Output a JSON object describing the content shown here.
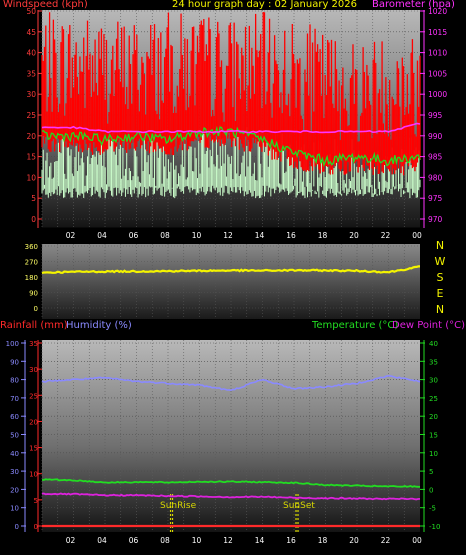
{
  "header": {
    "windspeed": "Windspeed (kph)",
    "title": "24 hour graph day : 02 January 2026",
    "barometer": "Barometer (hpa)"
  },
  "colors": {
    "windspeed": "#ff3b3b",
    "title": "#f4f400",
    "barometer": "#ff33ff",
    "gust": "#ff0000",
    "wind_avg": "#22dd22",
    "wind_light": "#ccffcc",
    "direction": "#f4f400",
    "rainfall": "#ff2a2a",
    "humidity": "#8a8aff",
    "temperature": "#22dd22",
    "dewpoint": "#dd22dd",
    "sun_markers": "#d8d800"
  },
  "time_labels": [
    "02",
    "04",
    "06",
    "08",
    "10",
    "12",
    "14",
    "16",
    "18",
    "20",
    "22",
    "00"
  ],
  "wind_panel": {
    "left_ticks": [
      "0",
      "5",
      "10",
      "15",
      "20",
      "25",
      "30",
      "35",
      "40",
      "45",
      "50"
    ],
    "right_ticks": [
      "970",
      "975",
      "980",
      "985",
      "990",
      "995",
      "1000",
      "1005",
      "1010",
      "1015",
      "1020"
    ]
  },
  "direction_panel": {
    "left_ticks": [
      "0",
      "90",
      "180",
      "270",
      "360"
    ],
    "compass": [
      "N",
      "W",
      "S",
      "E",
      "N"
    ]
  },
  "bottom_panel": {
    "rainfall_label": "Rainfall (mm)",
    "humidity_label": "Humidity (%)",
    "temperature_label": "Temperature (°C)",
    "dewpoint_label": "Dew Point (°C)",
    "rain_ticks": [
      "0",
      "5",
      "10",
      "15",
      "20",
      "25",
      "30",
      "35"
    ],
    "humidity_ticks": [
      "0",
      "10",
      "20",
      "30",
      "40",
      "50",
      "60",
      "70",
      "80",
      "90",
      "100"
    ],
    "temp_ticks": [
      "-10",
      "-5",
      "0",
      "5",
      "10",
      "15",
      "20",
      "25",
      "30",
      "35",
      "40"
    ],
    "sunrise_label": "SunRise",
    "sunset_label": "SunSet"
  },
  "chart_data": [
    {
      "type": "line",
      "panel": "wind and barometer",
      "x": [
        "00",
        "02",
        "04",
        "06",
        "08",
        "10",
        "12",
        "14",
        "16",
        "18",
        "20",
        "22",
        "00"
      ],
      "ylim": [
        0,
        50
      ],
      "y2lim": [
        970,
        1020
      ],
      "series": [
        {
          "values": [
            33,
            33,
            32,
            32,
            33,
            33,
            32,
            33,
            31,
            29,
            27,
            28,
            28
          ]
        },
        {
          "values": [
            20,
            20,
            19,
            20,
            19,
            21,
            21,
            19,
            16,
            14,
            15,
            14,
            15
          ]
        },
        {
          "values": [
            11,
            11,
            10,
            11,
            10,
            12,
            12,
            11,
            9,
            8,
            8,
            8,
            9
          ]
        },
        {
          "axis": "right",
          "values": [
            992,
            992,
            991,
            991,
            991,
            991,
            991,
            991,
            991,
            991,
            991,
            991,
            993
          ]
        }
      ]
    },
    {
      "type": "line",
      "panel": "wind direction",
      "x": [
        "00",
        "02",
        "04",
        "06",
        "08",
        "10",
        "12",
        "14",
        "16",
        "18",
        "20",
        "22",
        "00"
      ],
      "ylim": [
        0,
        360
      ],
      "series": [
        {
          "values": [
            205,
            210,
            212,
            213,
            214,
            216,
            218,
            217,
            219,
            218,
            216,
            208,
            240
          ]
        }
      ]
    },
    {
      "type": "line",
      "panel": "rain humidity temperature dew point",
      "x": [
        "00",
        "02",
        "04",
        "06",
        "08",
        "10",
        "12",
        "14",
        "16",
        "18",
        "20",
        "22",
        "00"
      ],
      "ylim": [
        0,
        100
      ],
      "y2lim": [
        -10,
        40
      ],
      "series": [
        {
          "axis": "left",
          "values": [
            0,
            0,
            0,
            0,
            0,
            0,
            0,
            0,
            0,
            0,
            0,
            0,
            0
          ]
        },
        {
          "axis": "left",
          "values": [
            79,
            80,
            81,
            79,
            78,
            77,
            74,
            80,
            75,
            76,
            78,
            82,
            79
          ]
        },
        {
          "axis": "right",
          "values": [
            2.7,
            2.5,
            1.9,
            2.0,
            1.9,
            2.1,
            2.1,
            2.0,
            1.8,
            1.2,
            1.0,
            0.8,
            0.8
          ]
        },
        {
          "axis": "right",
          "values": [
            -1.2,
            -1.3,
            -1.6,
            -1.6,
            -1.8,
            -1.9,
            -2.1,
            -2.0,
            -2.3,
            -2.4,
            -2.5,
            -2.6,
            -2.6
          ]
        }
      ]
    }
  ]
}
